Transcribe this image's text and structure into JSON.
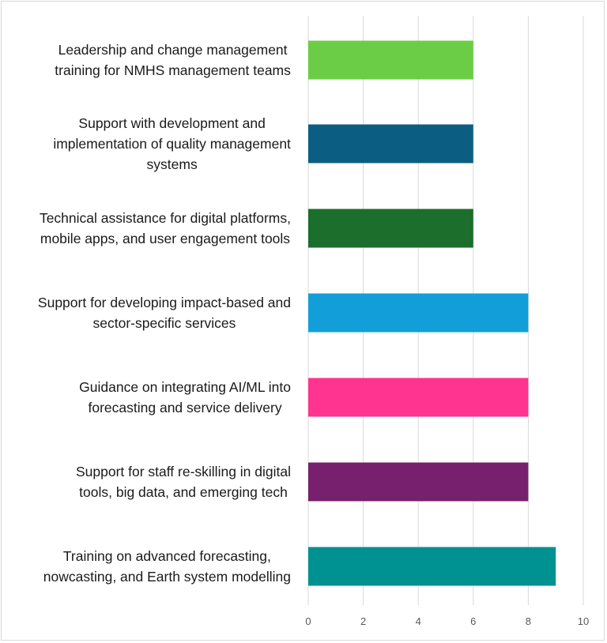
{
  "chart_data": {
    "type": "bar",
    "orientation": "horizontal",
    "title": "",
    "xlabel": "",
    "ylabel": "",
    "xlim": [
      0,
      10
    ],
    "xticks": [
      0,
      2,
      4,
      6,
      8,
      10
    ],
    "grid": true,
    "categories": [
      [
        "Leadership and change management",
        "training for NMHS management teams"
      ],
      [
        "Support with development and",
        "implementation of quality management",
        "systems"
      ],
      [
        "Technical assistance for digital platforms,",
        "mobile apps, and user engagement tools"
      ],
      [
        "Support for developing impact-based and",
        "sector-specific services"
      ],
      [
        "Guidance on integrating AI/ML into",
        "forecasting and service delivery"
      ],
      [
        "Support for staff re-skilling in digital",
        "tools, big data, and emerging tech"
      ],
      [
        "Training on advanced forecasting,",
        "nowcasting, and Earth system modelling"
      ]
    ],
    "values": [
      6,
      6,
      6,
      8,
      8,
      8,
      9
    ],
    "colors": [
      "#6bcd45",
      "#0b5e82",
      "#1b6e2b",
      "#129fd9",
      "#ff3390",
      "#76206e",
      "#009191"
    ]
  }
}
